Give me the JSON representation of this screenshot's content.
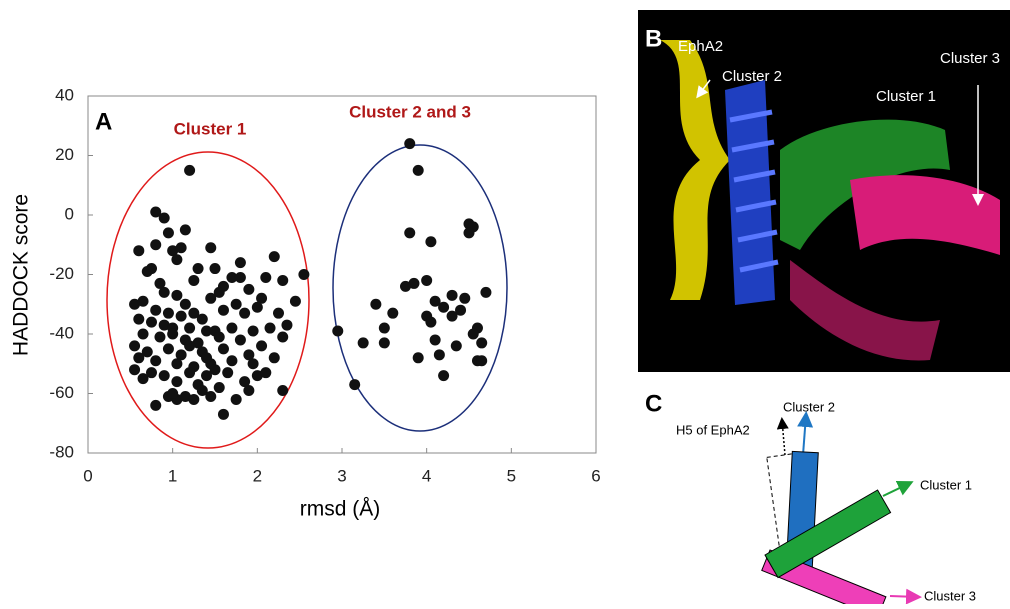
{
  "chart_data": {
    "type": "scatter",
    "panel_label": "A",
    "xlabel": "rmsd (Å)",
    "ylabel": "HADDOCK score",
    "annotations": [
      "Cluster 1",
      "Cluster 2 and 3"
    ],
    "xlim": [
      0,
      6
    ],
    "xticks": [
      0,
      1,
      2,
      3,
      4,
      5,
      6
    ],
    "ylim": [
      -80,
      40
    ],
    "yticks": [
      -80,
      -60,
      -40,
      -20,
      0,
      20,
      40
    ],
    "color": "#111111",
    "grid": false,
    "x": [
      3.8,
      3.9,
      3.8,
      4.05,
      4.5,
      4.55,
      4.5,
      4.45,
      4.3,
      4.0,
      3.85,
      3.75,
      4.1,
      4.2,
      4.0,
      4.05,
      4.7,
      4.4,
      4.3,
      4.6,
      4.55,
      4.65,
      4.6,
      4.65,
      3.9,
      4.15,
      4.2,
      4.35,
      3.4,
      3.6,
      3.5,
      3.5,
      3.25,
      2.95,
      3.15,
      4.1,
      1.2,
      0.8,
      0.9,
      1.15,
      0.95,
      0.8,
      1.0,
      1.1,
      1.45,
      0.6,
      1.05,
      1.8,
      1.5,
      0.75,
      0.7,
      2.2,
      2.55,
      1.3,
      1.7,
      1.8,
      2.1,
      2.3,
      0.85,
      1.25,
      1.6,
      1.9,
      0.9,
      1.05,
      0.55,
      0.65,
      1.15,
      1.45,
      1.55,
      2.45,
      2.05,
      1.75,
      0.8,
      0.95,
      1.1,
      1.25,
      1.35,
      1.6,
      1.85,
      2.0,
      2.25,
      0.6,
      0.75,
      0.9,
      1.0,
      1.2,
      1.4,
      1.5,
      1.7,
      1.95,
      2.15,
      2.35,
      0.65,
      0.85,
      1.15,
      1.3,
      1.55,
      1.8,
      2.05,
      2.3,
      0.55,
      0.7,
      0.95,
      1.1,
      1.35,
      1.6,
      1.9,
      2.2,
      0.6,
      0.8,
      1.05,
      1.25,
      1.45,
      1.7,
      1.95,
      0.55,
      0.75,
      0.9,
      1.2,
      1.4,
      1.65,
      1.85,
      2.0,
      0.65,
      1.05,
      1.3,
      1.55,
      2.1,
      2.3,
      0.8,
      0.95,
      1.05,
      1.15,
      1.25,
      1.35,
      1.45,
      1.6,
      1.75,
      1.9,
      1.0,
      1.4,
      1.5,
      1.2,
      1.0
    ],
    "y": [
      24,
      15,
      -6,
      -9,
      -3,
      -4,
      -6,
      -28,
      -27,
      -22,
      -23,
      -24,
      -29,
      -31,
      -34,
      -36,
      -26,
      -32,
      -34,
      -38,
      -40,
      -43,
      -49,
      -49,
      -48,
      -47,
      -54,
      -44,
      -30,
      -33,
      -38,
      -43,
      -43,
      -39,
      -57,
      -42,
      15,
      1,
      -1,
      -5,
      -6,
      -10,
      -12,
      -11,
      -11,
      -12,
      -15,
      -16,
      -18,
      -18,
      -19,
      -14,
      -20,
      -18,
      -21,
      -21,
      -21,
      -22,
      -23,
      -22,
      -24,
      -25,
      -26,
      -27,
      -30,
      -29,
      -30,
      -28,
      -26,
      -29,
      -28,
      -30,
      -32,
      -33,
      -34,
      -33,
      -35,
      -32,
      -33,
      -31,
      -33,
      -35,
      -36,
      -37,
      -38,
      -38,
      -39,
      -39,
      -38,
      -39,
      -38,
      -37,
      -40,
      -41,
      -42,
      -43,
      -41,
      -42,
      -44,
      -41,
      -44,
      -46,
      -45,
      -47,
      -46,
      -45,
      -47,
      -48,
      -48,
      -49,
      -50,
      -51,
      -50,
      -49,
      -50,
      -52,
      -53,
      -54,
      -53,
      -54,
      -53,
      -56,
      -54,
      -55,
      -56,
      -57,
      -58,
      -53,
      -59,
      -64,
      -61,
      -62,
      -61,
      -62,
      -59,
      -61,
      -67,
      -62,
      -59,
      -60,
      -48,
      -52,
      -44,
      -40
    ]
  },
  "panel_b": {
    "label": "B",
    "texts": [
      "EphA2",
      "Cluster 2",
      "Cluster 1",
      "Cluster 3"
    ]
  },
  "panel_c": {
    "label": "C",
    "texts": [
      "Cluster 2",
      "H5 of EphA2",
      "Cluster 1",
      "Cluster 3"
    ]
  }
}
